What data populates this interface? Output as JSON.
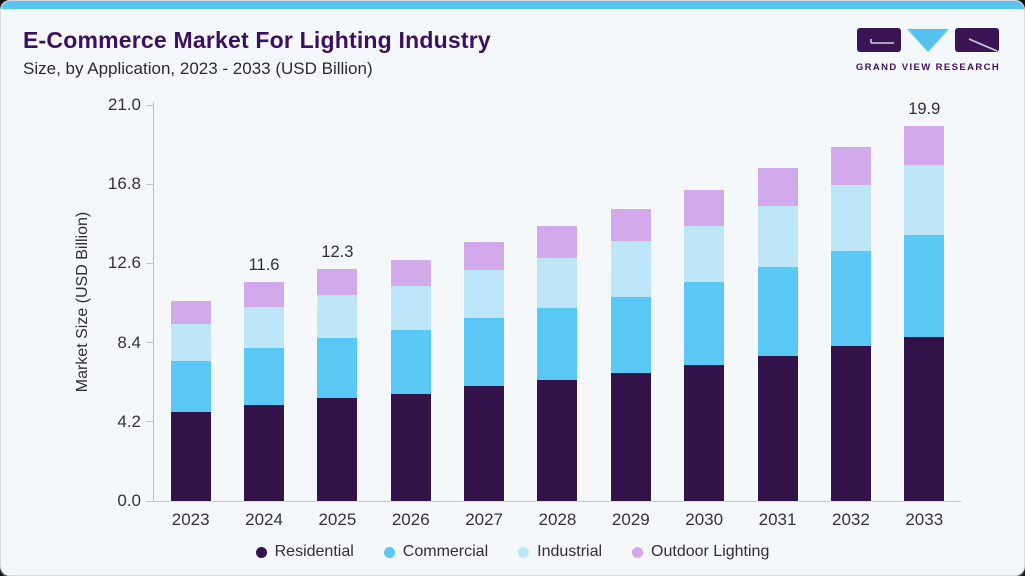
{
  "header": {
    "title": "E-Commerce Market For Lighting Industry",
    "subtitle": "Size, by Application, 2023 - 2033 (USD Billion)",
    "logo_text": "GRAND VIEW RESEARCH"
  },
  "colors": {
    "accent_strip": "#5ac6ef",
    "logo_dark": "#3a1453",
    "logo_triangle": "#56c3ee",
    "axis_line": "#b9c2cc",
    "text_dark": "#2e2e38"
  },
  "chart_data": {
    "type": "bar",
    "stacked": true,
    "title": "E-Commerce Market For Lighting Industry Size, by Application, 2023 - 2033 (USD Billion)",
    "ylabel": "Market Size (USD Billion)",
    "xlabel": "",
    "ylim": [
      0,
      21
    ],
    "ytick_labels": [
      "0.0",
      "4.2",
      "8.4",
      "12.6",
      "16.8",
      "21.0"
    ],
    "ytick_values": [
      0,
      4.2,
      8.4,
      12.6,
      16.8,
      21.0
    ],
    "grid": false,
    "legend_position": "bottom",
    "categories": [
      "2023",
      "2024",
      "2025",
      "2026",
      "2027",
      "2028",
      "2029",
      "2030",
      "2031",
      "2032",
      "2033"
    ],
    "series": [
      {
        "name": "Residential",
        "color": "#331249",
        "values": [
          4.7,
          5.1,
          5.45,
          5.7,
          6.1,
          6.4,
          6.8,
          7.2,
          7.7,
          8.2,
          8.7
        ]
      },
      {
        "name": "Commercial",
        "color": "#5ac8f5",
        "values": [
          2.75,
          3.0,
          3.2,
          3.35,
          3.6,
          3.85,
          4.0,
          4.4,
          4.7,
          5.05,
          5.4
        ]
      },
      {
        "name": "Industrial",
        "color": "#bde7f9",
        "values": [
          1.95,
          2.2,
          2.25,
          2.35,
          2.55,
          2.65,
          3.0,
          3.0,
          3.25,
          3.5,
          3.7
        ]
      },
      {
        "name": "Outdoor Lighting",
        "color": "#d2a9eb",
        "values": [
          1.2,
          1.3,
          1.4,
          1.4,
          1.5,
          1.7,
          1.7,
          1.9,
          2.0,
          2.05,
          2.1
        ]
      }
    ],
    "totals": [
      10.6,
      11.6,
      12.3,
      12.8,
      13.75,
      14.6,
      15.5,
      16.5,
      17.65,
      18.8,
      19.9
    ],
    "total_labels": {
      "2024": "11.6",
      "2025": "12.3",
      "2033": "19.9"
    }
  }
}
